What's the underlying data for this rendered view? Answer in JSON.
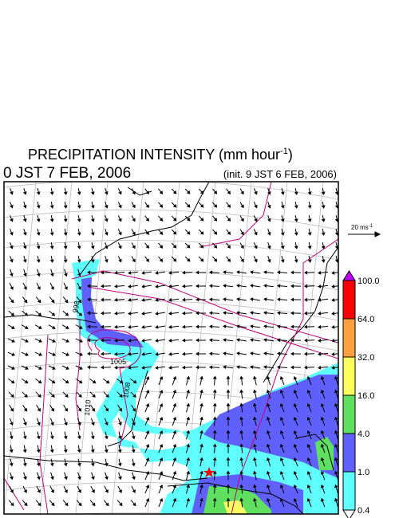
{
  "header": {
    "title": "PRECIPITATION INTENSITY (mm hour",
    "title_sup": "-1",
    "title_end": ")",
    "valid_time": "0 JST 7 FEB, 2006",
    "init_time": "(init. 9 JST 6 FEB, 2006)"
  },
  "wind_scale": {
    "label": "20 ms",
    "label_sup": "-1"
  },
  "colorbar": {
    "labels": [
      "100.0",
      "64.0",
      "32.0",
      "16.0",
      "4.0",
      "1.0",
      "0.4"
    ],
    "colors": [
      "#ff0000",
      "#ffa040",
      "#ffff60",
      "#60e060",
      "#6060ff",
      "#60ffff"
    ],
    "over_color": "#c000ff",
    "under_color": "#ffffff"
  },
  "contour_labels": [
    "1005",
    "1008",
    "1010",
    "998"
  ]
}
